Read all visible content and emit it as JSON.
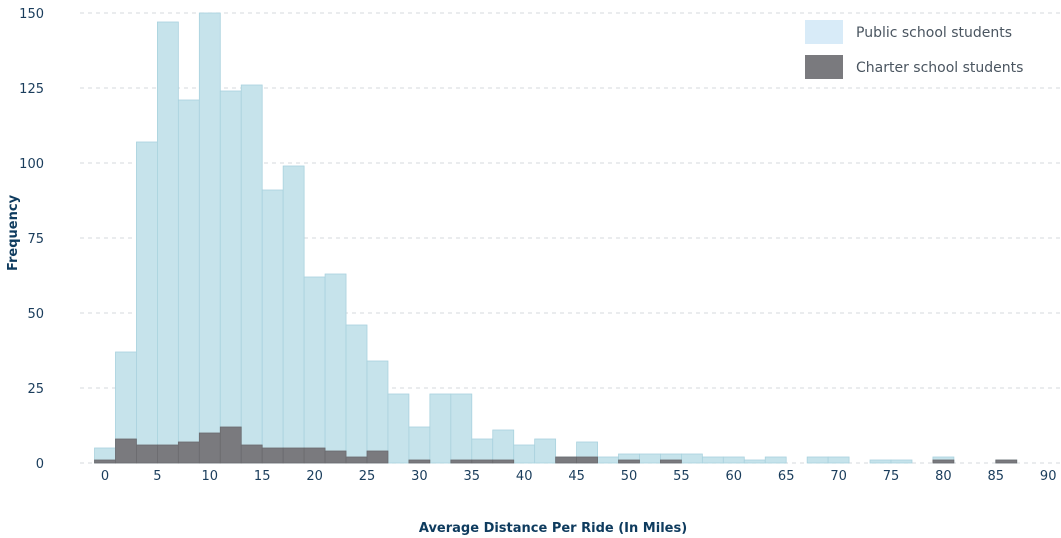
{
  "chart_data": {
    "type": "bar",
    "title": "",
    "xlabel": "Average Distance Per Ride (In Miles)",
    "ylabel": "Frequency",
    "xlim": [
      -2,
      90
    ],
    "ylim": [
      0,
      150
    ],
    "xticks": [
      0,
      5,
      10,
      15,
      20,
      25,
      30,
      35,
      40,
      45,
      50,
      55,
      60,
      65,
      70,
      75,
      80,
      85,
      90
    ],
    "yticks": [
      0,
      25,
      50,
      75,
      100,
      125,
      150
    ],
    "grid": true,
    "legend_position": "top-right",
    "bin_start": -1,
    "bin_width": 2,
    "series": [
      {
        "name": "Public school students",
        "color": "#c6e3eb",
        "values": [
          5,
          37,
          107,
          147,
          121,
          150,
          124,
          126,
          91,
          99,
          62,
          63,
          46,
          34,
          23,
          12,
          23,
          23,
          8,
          11,
          6,
          8,
          2,
          7,
          2,
          3,
          3,
          3,
          3,
          2,
          2,
          1,
          2,
          0,
          2,
          2,
          0,
          1,
          1,
          0,
          2,
          0,
          0,
          1
        ]
      },
      {
        "name": "Charter school students",
        "color": "#7a7a7e",
        "values": [
          1,
          8,
          6,
          6,
          7,
          10,
          12,
          6,
          5,
          5,
          5,
          4,
          2,
          4,
          0,
          1,
          0,
          1,
          1,
          1,
          0,
          0,
          2,
          2,
          0,
          1,
          0,
          1,
          0,
          0,
          0,
          0,
          0,
          0,
          0,
          0,
          0,
          0,
          0,
          0,
          1,
          0,
          0,
          1
        ]
      }
    ]
  },
  "legend_swatch_colors": {
    "public": "#d8ebf8",
    "charter": "#7a7a7e"
  }
}
